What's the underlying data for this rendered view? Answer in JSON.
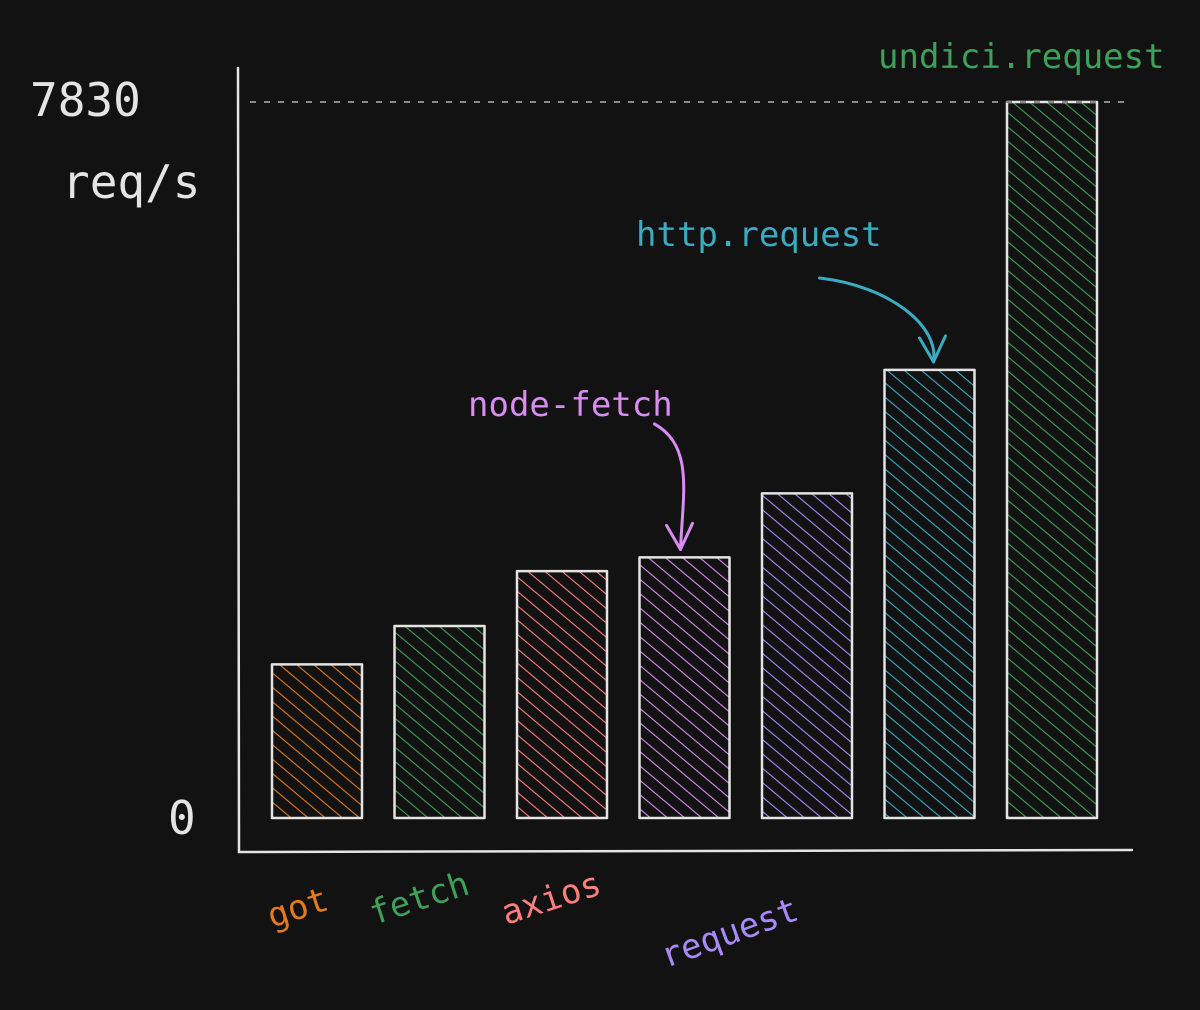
{
  "chart_data": {
    "type": "bar",
    "categories": [
      "got",
      "fetch",
      "axios",
      "node-fetch",
      "request",
      "http.request",
      "undici.request"
    ],
    "values": [
      1680,
      2100,
      2700,
      2850,
      3550,
      4900,
      7830
    ],
    "colors": [
      "#e07b24",
      "#3fa05a",
      "#ff7f7f",
      "#d98cf2",
      "#a78bfa",
      "#3cabc0",
      "#3fa05a"
    ],
    "ylim": [
      0,
      7830
    ],
    "y_ticks": [
      {
        "value": 7830,
        "label": "7830"
      },
      {
        "value": 0,
        "label": "0"
      }
    ],
    "ylabel": "req/s",
    "reference_line": {
      "value": 7830,
      "style": "dashed"
    },
    "axis_labels": [
      {
        "category": "got",
        "text": "got",
        "color": "#e07b24"
      },
      {
        "category": "fetch",
        "text": "fetch",
        "color": "#3fa05a"
      },
      {
        "category": "axios",
        "text": "axios",
        "color": "#ff7f7f"
      },
      {
        "category": "request",
        "text": "request",
        "color": "#a78bfa"
      }
    ],
    "callouts": [
      {
        "category": "node-fetch",
        "text": "node-fetch",
        "color": "#d98cf2",
        "arrow": true
      },
      {
        "category": "http.request",
        "text": "http.request",
        "color": "#3cabc0",
        "arrow": true
      },
      {
        "category": "undici.request",
        "text": "undici.request",
        "color": "#3fa05a",
        "arrow": false
      }
    ],
    "fill_pattern": "hatched",
    "bar_outline_color": "#e4e4e4",
    "axis_color": "#e4e4e4",
    "background": "#121212",
    "grid": false,
    "legend": "none"
  }
}
